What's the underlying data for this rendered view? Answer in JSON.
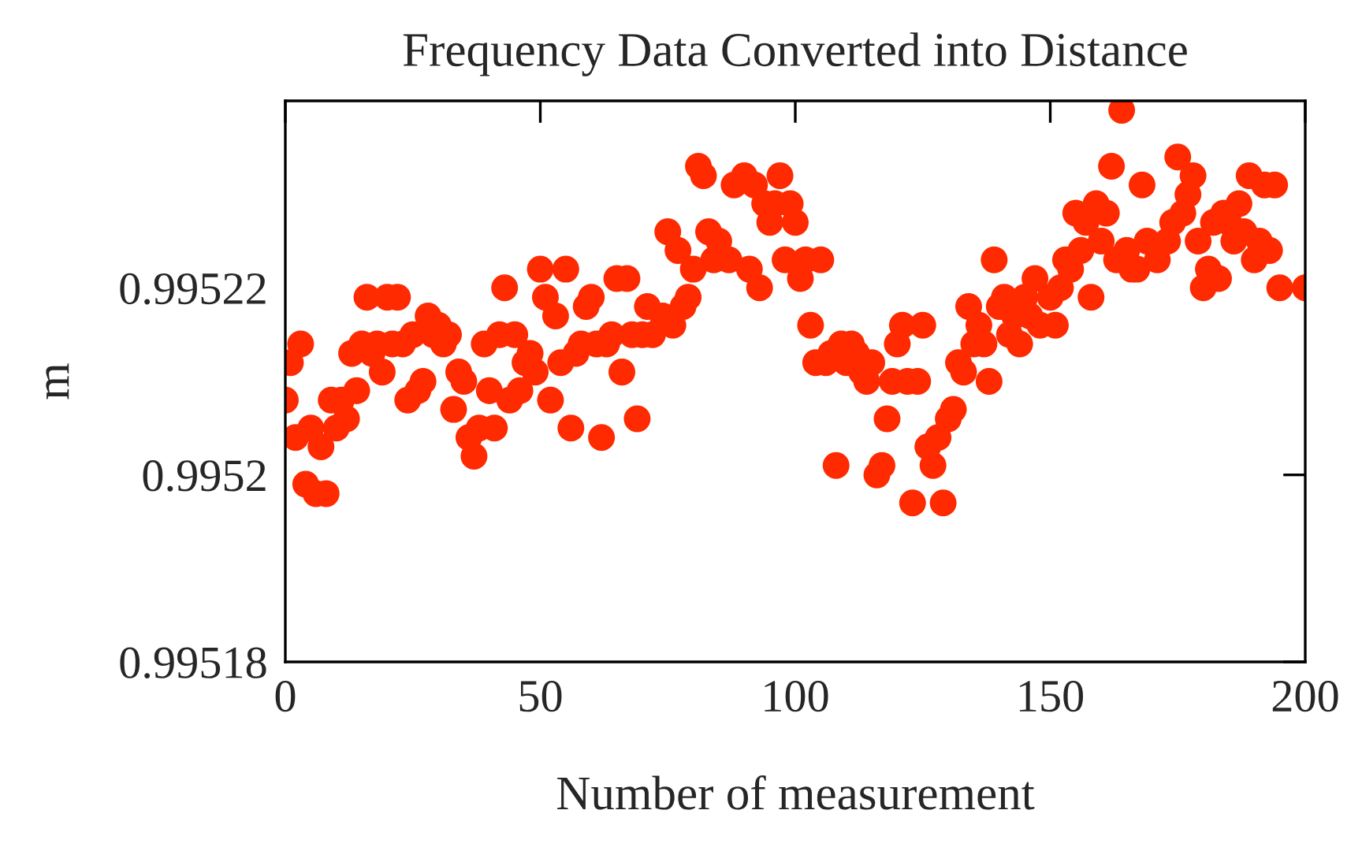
{
  "chart_data": {
    "type": "scatter",
    "title": "Frequency Data Converted into Distance",
    "xlabel": "Number of measurement",
    "ylabel": "m",
    "xlim": [
      0,
      200
    ],
    "xticks": [
      0,
      50,
      100,
      150,
      200
    ],
    "ylim": [
      0.99518,
      0.99524
    ],
    "yticks": [
      0.99518,
      0.9952,
      0.99522
    ],
    "marker": "circle",
    "series": [
      {
        "color": "#ff2a00",
        "x": [
          0,
          1,
          2,
          3,
          4,
          5,
          6,
          7,
          8,
          9,
          10,
          11,
          12,
          13,
          14,
          15,
          16,
          17,
          18,
          19,
          20,
          21,
          22,
          23,
          24,
          25,
          26,
          27,
          28,
          29,
          30,
          31,
          32,
          33,
          34,
          35,
          36,
          37,
          38,
          39,
          40,
          41,
          42,
          43,
          44,
          45,
          46,
          47,
          48,
          49,
          50,
          51,
          52,
          53,
          54,
          55,
          56,
          57,
          58,
          59,
          60,
          61,
          62,
          63,
          64,
          65,
          66,
          67,
          68,
          69,
          70,
          71,
          72,
          73,
          74,
          75,
          76,
          77,
          78,
          79,
          80,
          81,
          82,
          83,
          84,
          85,
          86,
          87,
          88,
          89,
          90,
          91,
          92,
          93,
          94,
          95,
          96,
          97,
          98,
          99,
          100,
          101,
          102,
          103,
          104,
          105,
          106,
          107,
          108,
          109,
          110,
          111,
          112,
          113,
          114,
          115,
          116,
          117,
          118,
          119,
          120,
          121,
          122,
          123,
          124,
          125,
          126,
          127,
          128,
          129,
          130,
          131,
          132,
          133,
          134,
          135,
          136,
          137,
          138,
          139,
          140,
          141,
          142,
          143,
          144,
          145,
          146,
          147,
          148,
          149,
          150,
          151,
          152,
          153,
          154,
          155,
          156,
          157,
          158,
          159,
          160,
          161,
          162,
          163,
          164,
          165,
          166,
          167,
          168,
          169,
          170,
          171,
          172,
          173,
          174,
          175,
          176,
          177,
          178,
          179,
          180,
          181,
          182,
          183,
          184,
          185,
          186,
          187,
          188,
          189,
          190,
          191,
          192,
          193,
          194,
          195,
          200
        ],
        "values": [
          0.995208,
          0.995212,
          0.995204,
          0.995214,
          0.995199,
          0.995205,
          0.995198,
          0.995203,
          0.995198,
          0.995208,
          0.995205,
          0.995208,
          0.995206,
          0.995213,
          0.995209,
          0.995214,
          0.995219,
          0.995213,
          0.995214,
          0.995211,
          0.995219,
          0.995214,
          0.995219,
          0.995214,
          0.995208,
          0.995215,
          0.995209,
          0.99521,
          0.995217,
          0.995215,
          0.995216,
          0.995214,
          0.995215,
          0.995207,
          0.995211,
          0.99521,
          0.995204,
          0.995202,
          0.995205,
          0.995214,
          0.995209,
          0.995205,
          0.995215,
          0.99522,
          0.995208,
          0.995215,
          0.995209,
          0.995212,
          0.995213,
          0.995211,
          0.995222,
          0.995219,
          0.995208,
          0.995217,
          0.995212,
          0.995222,
          0.995205,
          0.995213,
          0.995214,
          0.995218,
          0.995219,
          0.995214,
          0.995204,
          0.995214,
          0.995215,
          0.995221,
          0.995211,
          0.995221,
          0.995215,
          0.995206,
          0.995215,
          0.995218,
          0.995215,
          null,
          0.995217,
          0.995226,
          0.995216,
          0.995224,
          0.995218,
          0.995219,
          0.995222,
          0.995233,
          0.995232,
          0.995226,
          0.995223,
          0.995225,
          null,
          0.995223,
          0.995231,
          null,
          0.995232,
          0.995222,
          0.995231,
          0.99522,
          0.995229,
          0.995227,
          0.995229,
          0.995232,
          0.995223,
          0.995229,
          0.995227,
          0.995221,
          0.995223,
          0.995216,
          0.995212,
          0.995223,
          0.995212,
          0.995213,
          0.995201,
          0.995214,
          0.995212,
          0.995214,
          0.995213,
          0.995211,
          0.99521,
          0.995212,
          0.9952,
          0.995201,
          0.995206,
          0.99521,
          0.995214,
          0.995216,
          0.99521,
          0.995197,
          0.99521,
          0.995216,
          0.995203,
          0.995201,
          0.995204,
          0.995197,
          0.995206,
          0.995207,
          0.995212,
          0.995211,
          0.995218,
          0.995214,
          0.995216,
          0.995214,
          0.99521,
          0.995223,
          0.995218,
          0.995219,
          0.995215,
          0.995217,
          0.995214,
          0.995219,
          0.995217,
          0.995221,
          0.995216,
          null,
          0.995219,
          0.995216,
          0.99522,
          0.995223,
          0.995222,
          0.995228,
          0.995224,
          0.995227,
          0.995219,
          0.995229,
          0.995225,
          0.995228,
          0.995233,
          0.995223,
          0.995239,
          0.995224,
          0.995222,
          0.995222,
          0.995231,
          0.995225,
          null,
          0.995223,
          null,
          0.995225,
          0.995227,
          0.995234,
          0.995228,
          0.99523,
          0.995232,
          0.995225,
          0.99522,
          0.995222,
          0.995227,
          0.995221,
          0.995228,
          0.995227,
          0.995225,
          0.995229,
          0.995226,
          0.995232,
          0.995223,
          0.995225,
          0.995231,
          0.995224,
          0.995231,
          0.99522,
          0.99522
        ]
      }
    ]
  }
}
